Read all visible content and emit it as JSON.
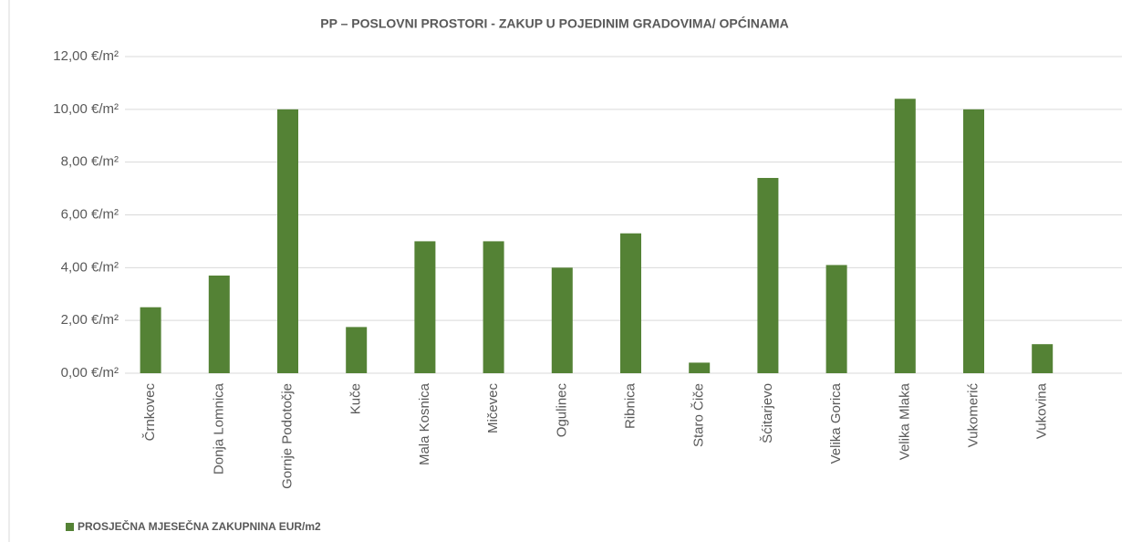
{
  "chart_data": {
    "type": "bar",
    "title": "PP – POSLOVNI PROSTORI - ZAKUP U POJEDINIM GRADOVIMA/ OPĆINAMA",
    "categories": [
      "Črnkovec",
      "Donja Lomnica",
      "Gornje Podotočje",
      "Kuče",
      "Mala Kosnica",
      "Mičevec",
      "Ogulinec",
      "Ribnica",
      "Staro Čiče",
      "Šćitarjevo",
      "Velika Gorica",
      "Velika Mlaka",
      "Vukomerić",
      "Vukovina"
    ],
    "series": [
      {
        "name": "PROSJEČNA MJESEČNA ZAKUPNINA EUR/m2",
        "color": "#548235",
        "values": [
          2.5,
          3.7,
          10.0,
          1.75,
          5.0,
          5.0,
          4.0,
          5.3,
          0.4,
          7.4,
          4.1,
          10.4,
          10.0,
          1.1
        ]
      }
    ],
    "ylim": [
      0,
      12
    ],
    "yticks": [
      {
        "value": 0,
        "label": "0,00 €/m²"
      },
      {
        "value": 2,
        "label": "2,00 €/m²"
      },
      {
        "value": 4,
        "label": "4,00 €/m²"
      },
      {
        "value": 6,
        "label": "6,00 €/m²"
      },
      {
        "value": 8,
        "label": "8,00 €/m²"
      },
      {
        "value": 10,
        "label": "10,00 €/m²"
      },
      {
        "value": 12,
        "label": "12,00 €/m²"
      }
    ],
    "grid": true,
    "legend": "bottom-left"
  }
}
